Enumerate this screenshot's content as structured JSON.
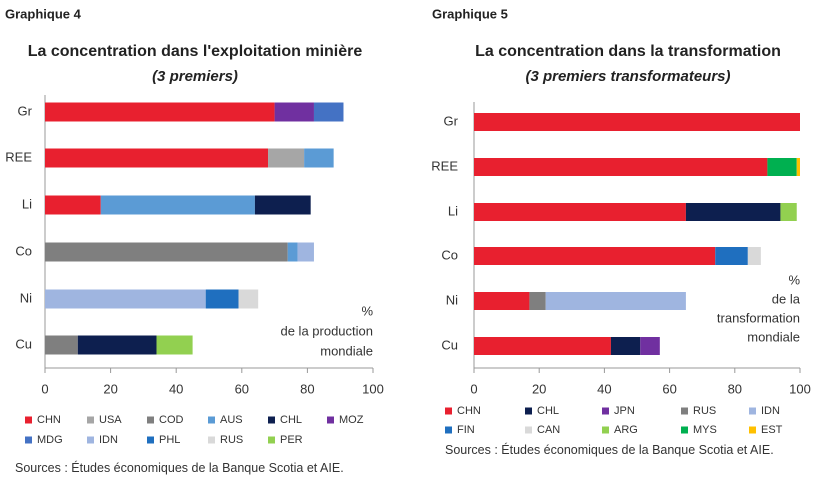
{
  "chart_data": [
    {
      "type": "bar",
      "label": "Graphique 4",
      "title": "La concentration dans l'exploitation minière",
      "subtitle": "(3 premiers)",
      "axis_note": [
        "%",
        "de la production",
        "mondiale"
      ],
      "categories": [
        "Gr",
        "REE",
        "Li",
        "Co",
        "Ni",
        "Cu"
      ],
      "series": [
        {
          "name": "CHN",
          "color": "#e8202f",
          "values": [
            70,
            68,
            17,
            null,
            null,
            null
          ]
        },
        {
          "name": "USA",
          "color": "#a6a6a6",
          "values": [
            null,
            11,
            null,
            null,
            null,
            null
          ]
        },
        {
          "name": "COD",
          "color": "#7f7f7f",
          "values": [
            null,
            null,
            null,
            74,
            null,
            10
          ]
        },
        {
          "name": "AUS",
          "color": "#5b9bd5",
          "values": [
            null,
            9,
            47,
            3,
            null,
            null
          ]
        },
        {
          "name": "CHL",
          "color": "#0d1f4f",
          "values": [
            null,
            null,
            17,
            null,
            null,
            24
          ]
        },
        {
          "name": "MOZ",
          "color": "#7030a0",
          "values": [
            12,
            null,
            null,
            null,
            null,
            null
          ]
        },
        {
          "name": "MDG",
          "color": "#4472c4",
          "values": [
            9,
            null,
            null,
            null,
            null,
            null
          ]
        },
        {
          "name": "IDN",
          "color": "#9fb5e0",
          "values": [
            null,
            null,
            null,
            5,
            49,
            null
          ]
        },
        {
          "name": "PHL",
          "color": "#1f6fbf",
          "values": [
            null,
            null,
            null,
            null,
            10,
            null
          ]
        },
        {
          "name": "RUS",
          "color": "#d9d9d9",
          "values": [
            null,
            null,
            null,
            null,
            6,
            null
          ]
        },
        {
          "name": "PER",
          "color": "#92d050",
          "values": [
            null,
            null,
            null,
            null,
            null,
            11
          ]
        }
      ],
      "xlim": [
        0,
        100
      ],
      "xticks": [
        0,
        20,
        40,
        60,
        80,
        100
      ],
      "source": "Sources : Études économiques de la Banque Scotia  et AIE."
    },
    {
      "type": "bar",
      "label": "Graphique 5",
      "title": "La concentration dans la transformation",
      "subtitle": "(3 premiers transformateurs)",
      "axis_note": [
        "%",
        "de la",
        "transformation",
        "mondiale"
      ],
      "categories": [
        "Gr",
        "REE",
        "Li",
        "Co",
        "Ni",
        "Cu"
      ],
      "series": [
        {
          "name": "CHN",
          "color": "#e8202f",
          "values": [
            100,
            90,
            65,
            74,
            17,
            42
          ]
        },
        {
          "name": "CHL",
          "color": "#0d1f4f",
          "values": [
            null,
            null,
            29,
            null,
            null,
            9
          ]
        },
        {
          "name": "JPN",
          "color": "#7030a0",
          "values": [
            null,
            null,
            null,
            null,
            null,
            6
          ]
        },
        {
          "name": "RUS",
          "color": "#7f7f7f",
          "values": [
            null,
            null,
            null,
            null,
            5,
            null
          ]
        },
        {
          "name": "IDN",
          "color": "#9fb5e0",
          "values": [
            null,
            null,
            null,
            null,
            43,
            null
          ]
        },
        {
          "name": "FIN",
          "color": "#1f6fbf",
          "values": [
            null,
            null,
            null,
            10,
            null,
            null
          ]
        },
        {
          "name": "CAN",
          "color": "#d9d9d9",
          "values": [
            null,
            null,
            null,
            4,
            null,
            null
          ]
        },
        {
          "name": "ARG",
          "color": "#92d050",
          "values": [
            null,
            null,
            5,
            null,
            null,
            null
          ]
        },
        {
          "name": "MYS",
          "color": "#00b050",
          "values": [
            null,
            9,
            null,
            null,
            null,
            null
          ]
        },
        {
          "name": "EST",
          "color": "#ffc000",
          "values": [
            null,
            1,
            null,
            null,
            null,
            null
          ]
        }
      ],
      "xlim": [
        0,
        100
      ],
      "xticks": [
        0,
        20,
        40,
        60,
        80,
        100
      ],
      "source": "Sources : Études économiques de la Banque Scotia et AIE."
    }
  ]
}
